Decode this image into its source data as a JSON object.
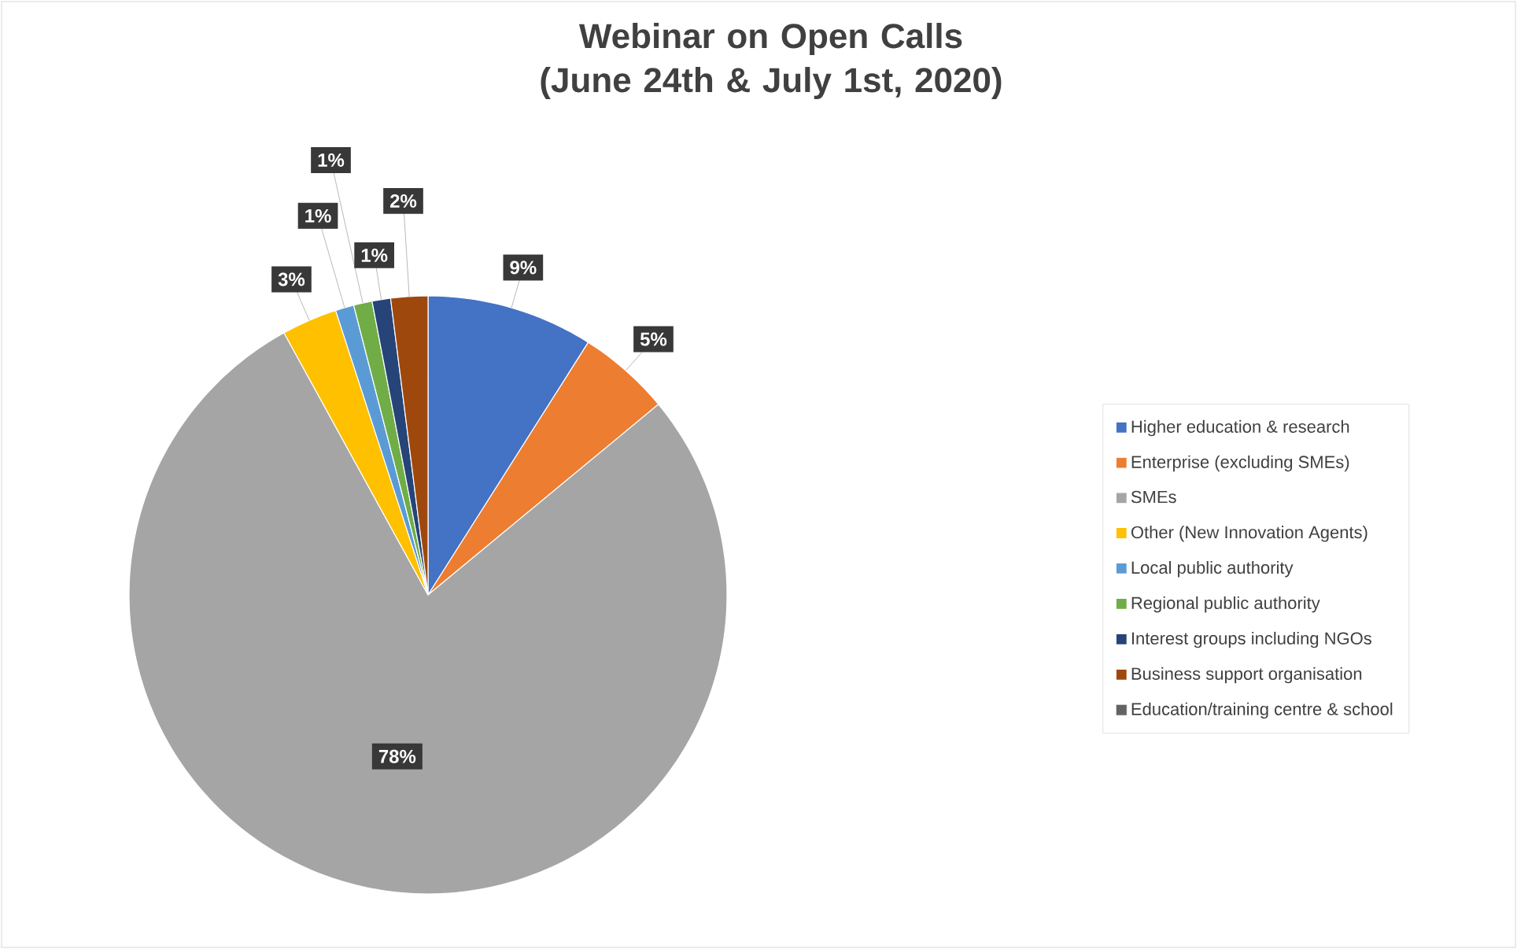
{
  "chart_data": {
    "type": "pie",
    "title": "Webinar on Open Calls (June 24th & July 1st, 2020)",
    "categories": [
      "Higher education & research",
      "Enterprise (excluding SMEs)",
      "SMEs",
      "Other (New Innovation Agents)",
      "Local public authority",
      "Regional public authority",
      "Interest groups including NGOs",
      "Business support organisation",
      "Education/training centre & school"
    ],
    "values": [
      9,
      5,
      78,
      3,
      1,
      1,
      1,
      2,
      0
    ],
    "value_labels": [
      "9%",
      "5%",
      "78%",
      "3%",
      "1%",
      "1%",
      "1%",
      "2%",
      null
    ],
    "colors": [
      "#4472c4",
      "#ed7d31",
      "#a5a5a5",
      "#ffc000",
      "#5b9bd5",
      "#70ad47",
      "#264478",
      "#9e480e",
      "#636363"
    ],
    "legend": "right"
  }
}
